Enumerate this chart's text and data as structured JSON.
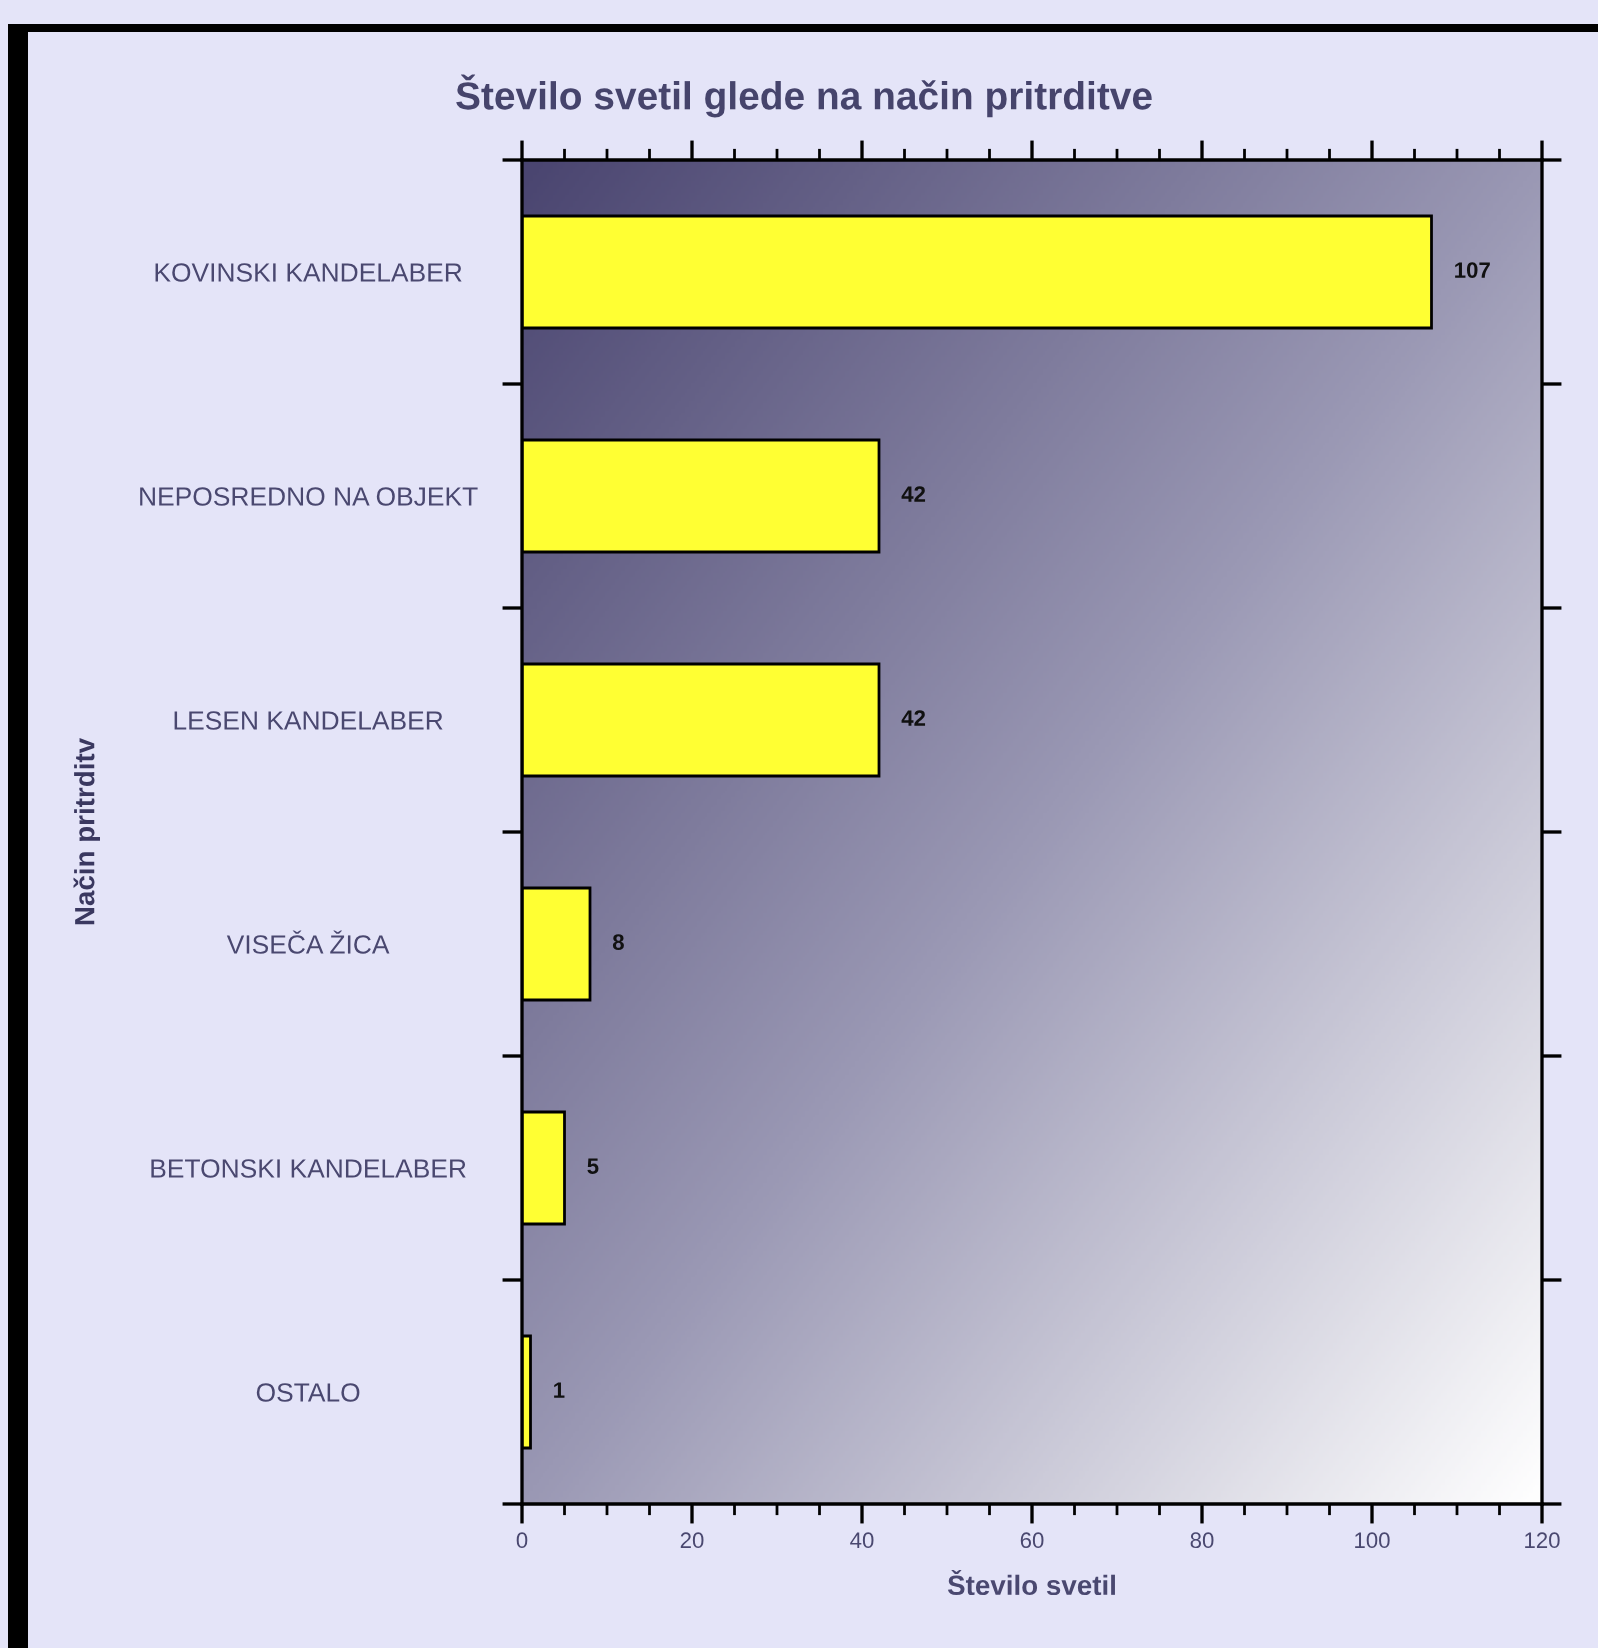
{
  "chart_data": {
    "type": "bar",
    "orientation": "horizontal",
    "title": "Število svetil glede na način pritrditve",
    "xlabel": "Število svetil",
    "ylabel": "Način pritrditv",
    "categories": [
      "KOVINSKI KANDELABER",
      "NEPOSREDNO NA OBJEKT",
      "LESEN KANDELABER",
      "VISEČA ŽICA",
      "BETONSKI KANDELABER",
      "OSTALO"
    ],
    "values": [
      107,
      42,
      42,
      8,
      5,
      1
    ],
    "color": "#ffff33",
    "xlim": [
      0,
      120
    ],
    "xticks": [
      0,
      20,
      40,
      60,
      80,
      100,
      120
    ],
    "data_labels": true
  }
}
